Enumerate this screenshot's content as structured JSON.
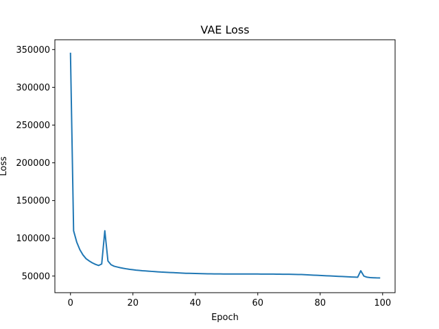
{
  "chart_data": {
    "type": "line",
    "title": "VAE Loss",
    "xlabel": "Epoch",
    "ylabel": "Loss",
    "xlim": [
      -5,
      104
    ],
    "ylim": [
      28000,
      363000
    ],
    "xticks": [
      0,
      20,
      40,
      60,
      80,
      100
    ],
    "yticks": [
      50000,
      100000,
      150000,
      200000,
      250000,
      300000,
      350000
    ],
    "xtick_labels": [
      "0",
      "20",
      "40",
      "60",
      "80",
      "100"
    ],
    "ytick_labels": [
      "50000",
      "100000",
      "150000",
      "200000",
      "250000",
      "300000",
      "350000"
    ],
    "grid": false,
    "series": [
      {
        "color": "#1f77b4",
        "x": [
          0,
          1,
          2,
          3,
          4,
          5,
          6,
          7,
          8,
          9,
          10,
          11,
          12,
          13,
          14,
          15,
          16,
          17,
          18,
          19,
          20,
          21,
          22,
          23,
          24,
          25,
          26,
          27,
          28,
          29,
          30,
          31,
          32,
          33,
          34,
          35,
          36,
          37,
          38,
          39,
          40,
          41,
          42,
          43,
          44,
          45,
          46,
          47,
          48,
          49,
          50,
          51,
          52,
          53,
          54,
          55,
          56,
          57,
          58,
          59,
          60,
          61,
          62,
          63,
          64,
          65,
          66,
          67,
          68,
          69,
          70,
          71,
          72,
          73,
          74,
          75,
          76,
          77,
          78,
          79,
          80,
          81,
          82,
          83,
          84,
          85,
          86,
          87,
          88,
          89,
          90,
          91,
          92,
          93,
          94,
          95,
          96,
          97,
          98,
          99
        ],
        "y": [
          345000,
          110000,
          95000,
          85000,
          78000,
          73000,
          70000,
          67500,
          65500,
          64000,
          66000,
          110000,
          70000,
          65000,
          63000,
          62000,
          61000,
          60200,
          59500,
          58900,
          58400,
          57900,
          57500,
          57100,
          56800,
          56500,
          56200,
          55900,
          55600,
          55300,
          55100,
          54900,
          54700,
          54500,
          54300,
          54100,
          53900,
          53700,
          53600,
          53500,
          53400,
          53300,
          53200,
          53100,
          53000,
          52950,
          52900,
          52850,
          52800,
          52780,
          52760,
          52740,
          52720,
          52700,
          52700,
          52700,
          52700,
          52700,
          52700,
          52700,
          52700,
          52680,
          52660,
          52640,
          52620,
          52600,
          52550,
          52500,
          52450,
          52400,
          52350,
          52300,
          52200,
          52100,
          52000,
          51800,
          51600,
          51400,
          51200,
          51000,
          50800,
          50600,
          50400,
          50200,
          50000,
          49800,
          49600,
          49400,
          49200,
          49000,
          48800,
          48600,
          48400,
          57000,
          50000,
          48500,
          48000,
          47800,
          47600,
          47500
        ]
      }
    ]
  }
}
